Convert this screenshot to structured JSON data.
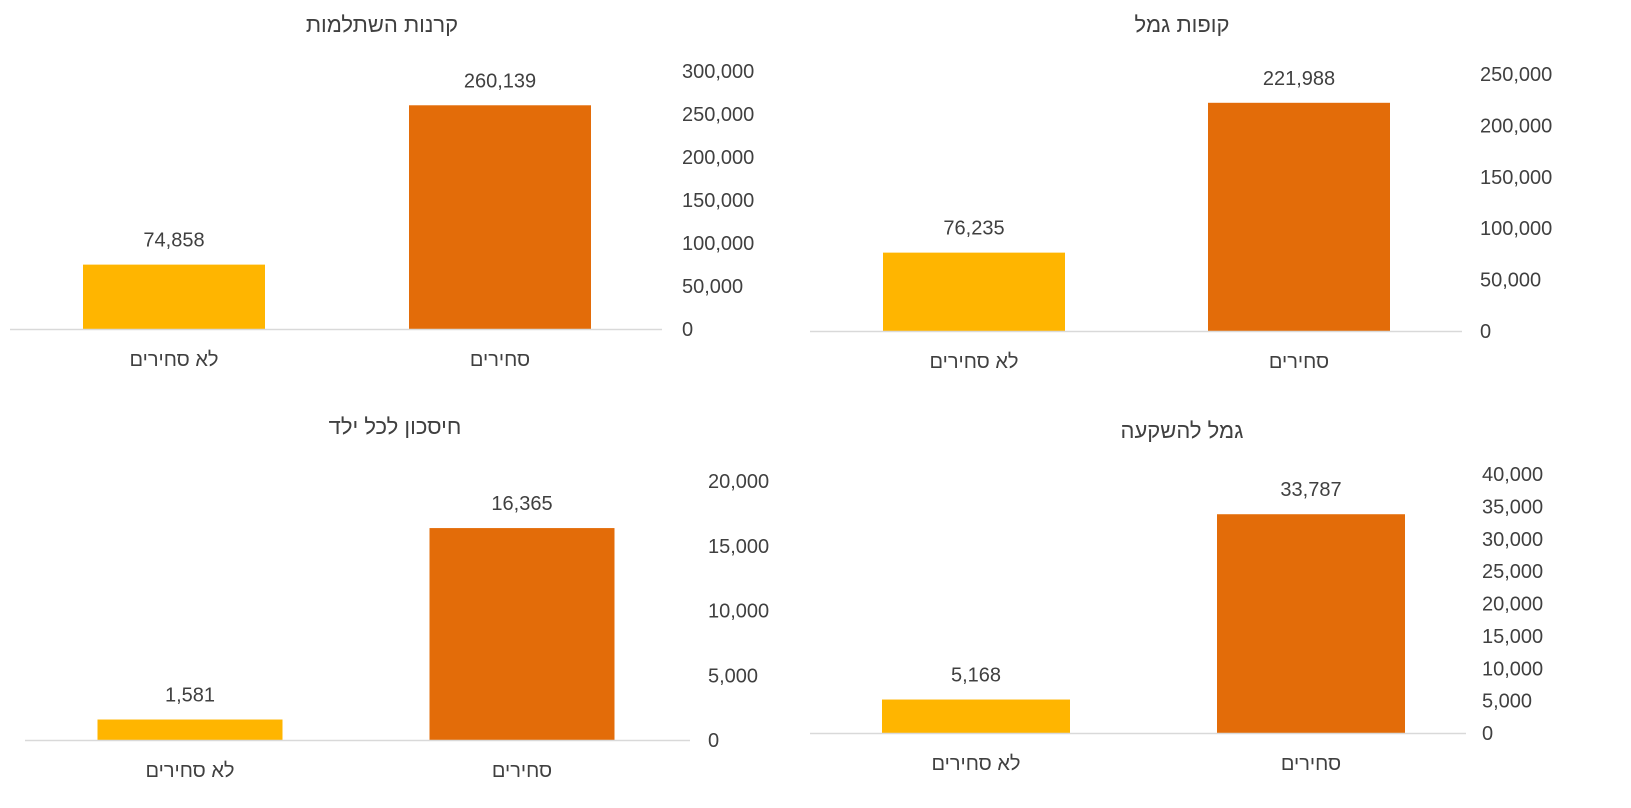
{
  "colors": {
    "employees": "#E36C09",
    "non_employees": "#FFB500",
    "axis": "#D9D9D9",
    "text": "#404040"
  },
  "chart_data": [
    {
      "type": "bar",
      "title": "קופות גמל",
      "categories": [
        "סחירים",
        "לא סחירים"
      ],
      "values": [
        221988,
        76235
      ],
      "value_labels": [
        "221,988",
        "76,235"
      ],
      "ylim": [
        0,
        250000
      ],
      "yticks": [
        "0",
        "50,000",
        "100,000",
        "150,000",
        "200,000",
        "250,000"
      ],
      "ytick_values": [
        0,
        50000,
        100000,
        150000,
        200000,
        250000
      ],
      "grid": false,
      "legend": "none"
    },
    {
      "type": "bar",
      "title": "קרנות השתלמות",
      "categories": [
        "סחירים",
        "לא סחירים"
      ],
      "values": [
        260139,
        74858
      ],
      "value_labels": [
        "260,139",
        "74,858"
      ],
      "ylim": [
        0,
        300000
      ],
      "yticks": [
        "0",
        "50,000",
        "100,000",
        "150,000",
        "200,000",
        "250,000",
        "300,000"
      ],
      "ytick_values": [
        0,
        50000,
        100000,
        150000,
        200000,
        250000,
        300000
      ],
      "grid": false,
      "legend": "none"
    },
    {
      "type": "bar",
      "title": "גמל להשקעה",
      "categories": [
        "סחירים",
        "לא סחירים"
      ],
      "values": [
        33787,
        5168
      ],
      "value_labels": [
        "33,787",
        "5,168"
      ],
      "ylim": [
        0,
        40000
      ],
      "yticks": [
        "0",
        "5,000",
        "10,000",
        "15,000",
        "20,000",
        "25,000",
        "30,000",
        "35,000",
        "40,000"
      ],
      "ytick_values": [
        0,
        5000,
        10000,
        15000,
        20000,
        25000,
        30000,
        35000,
        40000
      ],
      "grid": false,
      "legend": "none"
    },
    {
      "type": "bar",
      "title": "חיסכון לכל ילד",
      "categories": [
        "סחירים",
        "לא סחירים"
      ],
      "values": [
        16365,
        1581
      ],
      "value_labels": [
        "16,365",
        "1,581"
      ],
      "ylim": [
        0,
        20000
      ],
      "yticks": [
        "0",
        "5,000",
        "10,000",
        "15,000",
        "20,000"
      ],
      "ytick_values": [
        0,
        5000,
        10000,
        15000,
        20000
      ],
      "grid": false,
      "legend": "none"
    }
  ]
}
